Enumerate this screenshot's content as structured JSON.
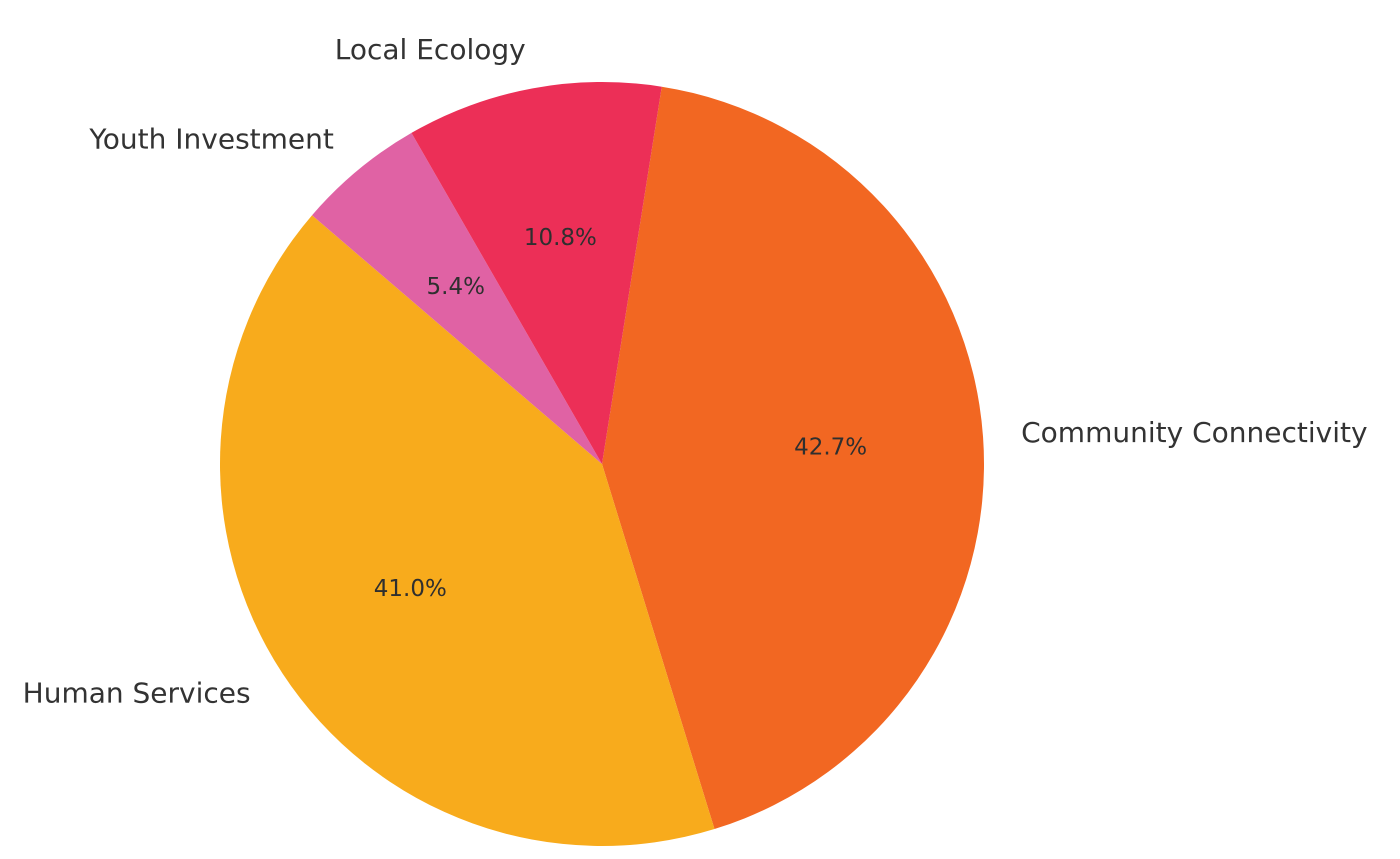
{
  "chart_data": {
    "type": "pie",
    "title": "",
    "slices": [
      {
        "label": "Community Connectivity",
        "value": 42.7,
        "pct_label": "42.7%",
        "color": "#F26722"
      },
      {
        "label": "Human Services",
        "value": 41.0,
        "pct_label": "41.0%",
        "color": "#F8AB1C"
      },
      {
        "label": "Youth Investment",
        "value": 5.4,
        "pct_label": "5.4%",
        "color": "#E062A4"
      },
      {
        "label": "Local Ecology",
        "value": 10.8,
        "pct_label": "10.8%",
        "color": "#EC2F57"
      }
    ],
    "start_angle_deg": 81,
    "direction": "clockwise",
    "legend": "none"
  }
}
